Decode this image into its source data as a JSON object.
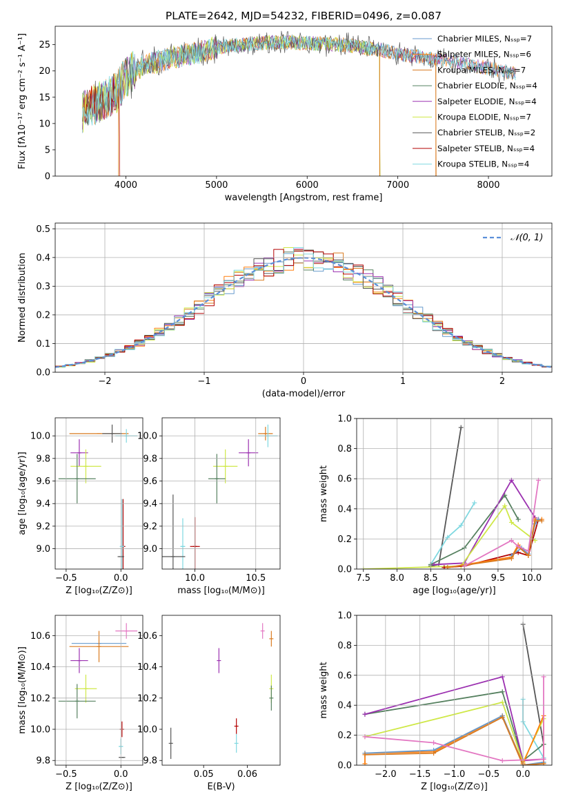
{
  "figure_title": "PLATE=2642, MJD=54232, FIBERID=0496, z=0.087",
  "legend_colors": [
    "#6699cc",
    "#ff7f0e",
    "#d97a1f",
    "#55805f",
    "#9b30b0",
    "#cfe847",
    "#555555",
    "#b30000",
    "#7fd8e0"
  ],
  "chart_data": [
    {
      "id": "spectrum",
      "type": "line",
      "title": "PLATE=2642, MJD=54232, FIBERID=0496, z=0.087",
      "xlabel": "wavelength [Angstrom, rest frame]",
      "ylabel": "Flux [fλ10⁻¹⁷ erg cm⁻² s⁻¹ A⁻¹]",
      "xlim": [
        3220,
        8700
      ],
      "ylim": [
        0,
        28.5
      ],
      "xticks": [
        "4000",
        "5000",
        "6000",
        "7000",
        "8000"
      ],
      "yticks": [
        "0",
        "5",
        "10",
        "15",
        "20",
        "25"
      ],
      "grid": false,
      "legend_position": "top-right",
      "legend": [
        "Chabrier MILES, Nₛₛₚ=7",
        "Salpeter MILES, Nₛₛₚ=6",
        "Kroupa MILES, Nₛₛₚ=7",
        "Chabrier ELODIE, Nₛₛₚ=4",
        "Salpeter ELODIE, Nₛₛₚ=4",
        "Kroupa ELODIE, Nₛₛₚ=7",
        "Chabrier STELIB, Nₛₛₚ=2",
        "Salpeter STELIB, Nₛₛₚ=4",
        "Kroupa STELIB, Nₛₛₚ=4"
      ],
      "continuum": {
        "x": [
          3500,
          3700,
          3900,
          4000,
          4200,
          4500,
          4800,
          5000,
          5300,
          5600,
          6000,
          6400,
          6800,
          7100,
          7400,
          7700,
          8000,
          8300
        ],
        "y": [
          12,
          14,
          16,
          19,
          21,
          22.5,
          23.5,
          24.5,
          25,
          25.5,
          25.3,
          25,
          24,
          23,
          22.3,
          21.5,
          20.5,
          19.5
        ]
      },
      "drops": [
        {
          "x": 3920,
          "y": 0
        },
        {
          "x": 6800,
          "y": 0
        },
        {
          "x": 7420,
          "y": 0
        }
      ]
    },
    {
      "id": "residuals",
      "type": "histogram",
      "xlabel": "(data-model)/error",
      "ylabel": "Normed distribution",
      "xlim": [
        -2.5,
        2.5
      ],
      "ylim": [
        0,
        0.52
      ],
      "xticks": [
        "−2",
        "−1",
        "0",
        "1",
        "2"
      ],
      "yticks": [
        "0.0",
        "0.1",
        "0.2",
        "0.3",
        "0.4",
        "0.5"
      ],
      "grid": true,
      "legend_position": "top-right",
      "legend": [
        "𝒩(0, 1)"
      ],
      "reference_curve": "normal(0,1)",
      "bin_width": 0.1
    },
    {
      "id": "age_vs_Z",
      "type": "scatter",
      "xlabel": "Z [log₁₀(Z/Z⊙)]",
      "ylabel": "age [log₁₀(age/yr)]",
      "xlim": [
        -0.6,
        0.2
      ],
      "ylim": [
        8.82,
        10.16
      ],
      "xticks": [
        "−0.5",
        "0.0"
      ],
      "yticks": [
        "9.0",
        "9.2",
        "9.4",
        "9.6",
        "9.8",
        "10.0"
      ],
      "grid": true,
      "points": [
        {
          "x": -0.2,
          "y": 10.02,
          "ex": 0.27,
          "ey": 0.0,
          "c": 2
        },
        {
          "x": -0.08,
          "y": 10.02,
          "ex": 0.09,
          "ey": 0.08,
          "c": 6
        },
        {
          "x": 0.05,
          "y": 10.0,
          "ex": 0.1,
          "ey": 0.06,
          "c": 8
        },
        {
          "x": -0.38,
          "y": 9.85,
          "ex": 0.08,
          "ey": 0.12,
          "c": 4
        },
        {
          "x": -0.32,
          "y": 9.73,
          "ex": 0.14,
          "ey": 0.15,
          "c": 5
        },
        {
          "x": -0.4,
          "y": 9.62,
          "ex": 0.17,
          "ey": 0.22,
          "c": 3
        },
        {
          "x": 0.02,
          "y": 9.02,
          "ex": 0.02,
          "ey": 0.42,
          "c": 7
        },
        {
          "x": 0.01,
          "y": 9.02,
          "ex": 0.02,
          "ey": 0.42,
          "c": 8
        },
        {
          "x": 0.0,
          "y": 8.93,
          "ex": 0.03,
          "ey": 0.0,
          "c": 6
        }
      ]
    },
    {
      "id": "age_vs_mass",
      "type": "scatter",
      "xlabel": "mass [log₁₀(M/M⊙)]",
      "ylabel": "",
      "xlim": [
        9.73,
        10.7
      ],
      "ylim": [
        8.82,
        10.16
      ],
      "xticks": [
        "10.0",
        "10.5"
      ],
      "yticks": [
        "9.0",
        "9.2",
        "9.4",
        "9.6",
        "9.8",
        "10.0"
      ],
      "grid": true,
      "points": [
        {
          "x": 10.58,
          "y": 10.02,
          "ex": 0.06,
          "ey": 0.06,
          "c": 2
        },
        {
          "x": 10.6,
          "y": 10.0,
          "ex": 0.08,
          "ey": 0.1,
          "c": 8
        },
        {
          "x": 10.44,
          "y": 9.85,
          "ex": 0.08,
          "ey": 0.12,
          "c": 4
        },
        {
          "x": 10.25,
          "y": 9.73,
          "ex": 0.1,
          "ey": 0.15,
          "c": 5
        },
        {
          "x": 10.18,
          "y": 9.62,
          "ex": 0.07,
          "ey": 0.22,
          "c": 3
        },
        {
          "x": 10.0,
          "y": 9.02,
          "ex": 0.04,
          "ey": 0.26,
          "c": 7
        },
        {
          "x": 9.9,
          "y": 9.02,
          "ex": 0.02,
          "ey": 0.25,
          "c": 8
        },
        {
          "x": 9.82,
          "y": 8.93,
          "ex": 0.1,
          "ey": 0.55,
          "c": 6
        }
      ]
    },
    {
      "id": "weight_vs_age",
      "type": "line",
      "xlabel": "age [log₁₀(age/yr)]",
      "ylabel": "mass weight",
      "xlim": [
        7.4,
        10.3
      ],
      "ylim": [
        0,
        1
      ],
      "xticks": [
        "7.5",
        "8.0",
        "8.5",
        "9.0",
        "9.5",
        "10.0"
      ],
      "yticks": [
        "0.0",
        "0.2",
        "0.4",
        "0.6",
        "0.8",
        "1.0"
      ],
      "grid": true,
      "series": [
        {
          "c": 6,
          "x": [
            8.5,
            8.62,
            8.95
          ],
          "y": [
            0.02,
            0.03,
            0.94
          ]
        },
        {
          "c": 8,
          "x": [
            8.5,
            8.75,
            8.95,
            9.15
          ],
          "y": [
            0.03,
            0.21,
            0.29,
            0.44
          ]
        },
        {
          "c": 3,
          "x": [
            8.5,
            9.0,
            9.6,
            9.8
          ],
          "y": [
            0.03,
            0.14,
            0.49,
            0.33
          ]
        },
        {
          "c": 4,
          "x": [
            8.55,
            9.0,
            9.7,
            10.05
          ],
          "y": [
            0.03,
            0.04,
            0.59,
            0.34
          ]
        },
        {
          "c": 5,
          "x": [
            7.5,
            8.95,
            9.6,
            9.7,
            10.05
          ],
          "y": [
            0.0,
            0.02,
            0.42,
            0.31,
            0.19
          ]
        },
        {
          "c": 7,
          "x": [
            8.7,
            9.0,
            9.8,
            9.95,
            10.1
          ],
          "y": [
            0.01,
            0.02,
            0.11,
            0.09,
            0.33
          ]
        },
        {
          "c": 1,
          "x": [
            8.75,
            9.7,
            9.8,
            9.95,
            10.05,
            10.15
          ],
          "y": [
            0.01,
            0.08,
            0.16,
            0.09,
            0.33,
            0.33
          ]
        },
        {
          "c": 0,
          "x": [
            9.7,
            9.85,
            9.95,
            10.05,
            10.1
          ],
          "y": [
            0.09,
            0.14,
            0.1,
            0.3,
            0.33
          ]
        },
        {
          "c": 2,
          "x": [
            8.75,
            9.7,
            9.8,
            9.95,
            10.05,
            10.15
          ],
          "y": [
            0.01,
            0.07,
            0.15,
            0.09,
            0.32,
            0.32
          ]
        },
        {
          "c": 9,
          "x": [
            9.0,
            9.7,
            9.8,
            9.95,
            10.1
          ],
          "y": [
            0.02,
            0.19,
            0.15,
            0.12,
            0.59
          ]
        }
      ]
    },
    {
      "id": "mass_vs_Z",
      "type": "scatter",
      "xlabel": "Z [log₁₀(Z/Z⊙)]",
      "ylabel": "mass [log₁₀(M/M⊙)]",
      "xlim": [
        -0.6,
        0.2
      ],
      "ylim": [
        9.77,
        10.73
      ],
      "xticks": [
        "−0.5",
        "0.0"
      ],
      "yticks": [
        "9.8",
        "10.0",
        "10.2",
        "10.4",
        "10.6"
      ],
      "grid": true,
      "points": [
        {
          "x": -0.2,
          "y": 10.55,
          "ex": 0.25,
          "ey": 0.0,
          "c": 0
        },
        {
          "x": -0.2,
          "y": 10.53,
          "ex": 0.27,
          "ey": 0.1,
          "c": 2
        },
        {
          "x": 0.05,
          "y": 10.63,
          "ex": 0.1,
          "ey": 0.05,
          "c": 9
        },
        {
          "x": -0.38,
          "y": 10.44,
          "ex": 0.08,
          "ey": 0.08,
          "c": 4
        },
        {
          "x": -0.32,
          "y": 10.26,
          "ex": 0.1,
          "ey": 0.09,
          "c": 5
        },
        {
          "x": -0.4,
          "y": 10.18,
          "ex": 0.17,
          "ey": 0.11,
          "c": 3
        },
        {
          "x": 0.01,
          "y": 10.0,
          "ex": 0.02,
          "ey": 0.05,
          "c": 7
        },
        {
          "x": 0.0,
          "y": 9.89,
          "ex": 0.02,
          "ey": 0.05,
          "c": 8
        },
        {
          "x": 0.01,
          "y": 9.82,
          "ex": 0.03,
          "ey": 0.0,
          "c": 6
        }
      ]
    },
    {
      "id": "mass_vs_EBV",
      "type": "scatter",
      "xlabel": "E(B-V)",
      "ylabel": "",
      "xlim": [
        0.0405,
        0.0675
      ],
      "ylim": [
        9.77,
        10.73
      ],
      "xticks": [
        "0.05",
        "0.06"
      ],
      "yticks": [
        "9.8",
        "10.0",
        "10.2",
        "10.4",
        "10.6"
      ],
      "grid": false,
      "points": [
        {
          "x": 0.0655,
          "y": 10.58,
          "ex": 0,
          "ey": 0.05,
          "c": 2
        },
        {
          "x": 0.0635,
          "y": 10.63,
          "ex": 0,
          "ey": 0.05,
          "c": 9
        },
        {
          "x": 0.0535,
          "y": 10.44,
          "ex": 0,
          "ey": 0.08,
          "c": 4
        },
        {
          "x": 0.0655,
          "y": 10.26,
          "ex": 0,
          "ey": 0.09,
          "c": 5
        },
        {
          "x": 0.0655,
          "y": 10.2,
          "ex": 0,
          "ey": 0.08,
          "c": 3
        },
        {
          "x": 0.0575,
          "y": 10.02,
          "ex": 0,
          "ey": 0.05,
          "c": 7
        },
        {
          "x": 0.0575,
          "y": 9.91,
          "ex": 0,
          "ey": 0.06,
          "c": 8
        },
        {
          "x": 0.0425,
          "y": 9.91,
          "ex": 0,
          "ey": 0.1,
          "c": 6
        }
      ]
    },
    {
      "id": "weight_vs_Z",
      "type": "line",
      "xlabel": "Z [log₁₀(Z/Z⊙)]",
      "ylabel": "mass weight",
      "xlim": [
        -2.42,
        0.42
      ],
      "ylim": [
        0,
        1
      ],
      "xticks": [
        "−2.0",
        "−1.5",
        "−1.0",
        "−0.5",
        "0.0"
      ],
      "yticks": [
        "0.0",
        "0.2",
        "0.4",
        "0.6",
        "0.8",
        "1.0"
      ],
      "grid": true,
      "series": [
        {
          "c": 6,
          "x": [
            -0.0,
            0.3,
            0.3
          ],
          "y": [
            0.94,
            0.14,
            0.02
          ]
        },
        {
          "c": 8,
          "x": [
            0.0,
            0.0,
            0.3,
            0.3
          ],
          "y": [
            0.44,
            0.29,
            0.05,
            0.02
          ]
        },
        {
          "c": 3,
          "x": [
            -2.3,
            -0.3,
            0.0,
            0.3
          ],
          "y": [
            0.34,
            0.49,
            0.03,
            0.14
          ]
        },
        {
          "c": 4,
          "x": [
            -2.3,
            -0.3,
            0.0,
            0.3
          ],
          "y": [
            0.34,
            0.59,
            0.03,
            0.04
          ]
        },
        {
          "c": 5,
          "x": [
            -2.3,
            -0.3,
            0.0,
            0.3
          ],
          "y": [
            0.19,
            0.42,
            0.02,
            0.31
          ]
        },
        {
          "c": 1,
          "x": [
            -2.3,
            -2.3,
            -1.3,
            -0.3,
            0.0,
            0.3,
            0.3
          ],
          "y": [
            0.01,
            0.08,
            0.09,
            0.33,
            0.01,
            0.33,
            0.01
          ]
        },
        {
          "c": 0,
          "x": [
            -2.3,
            -1.3,
            -0.3,
            0.0,
            0.3
          ],
          "y": [
            0.08,
            0.1,
            0.33,
            0.0,
            0.02
          ]
        },
        {
          "c": 2,
          "x": [
            -2.3,
            -1.3,
            -0.3,
            0.0,
            0.3
          ],
          "y": [
            0.07,
            0.08,
            0.32,
            0.0,
            0.01
          ]
        },
        {
          "c": 9,
          "x": [
            -2.3,
            -1.3,
            -0.3,
            0.3,
            0.3
          ],
          "y": [
            0.19,
            0.15,
            0.03,
            0.04,
            0.59
          ]
        }
      ]
    }
  ]
}
